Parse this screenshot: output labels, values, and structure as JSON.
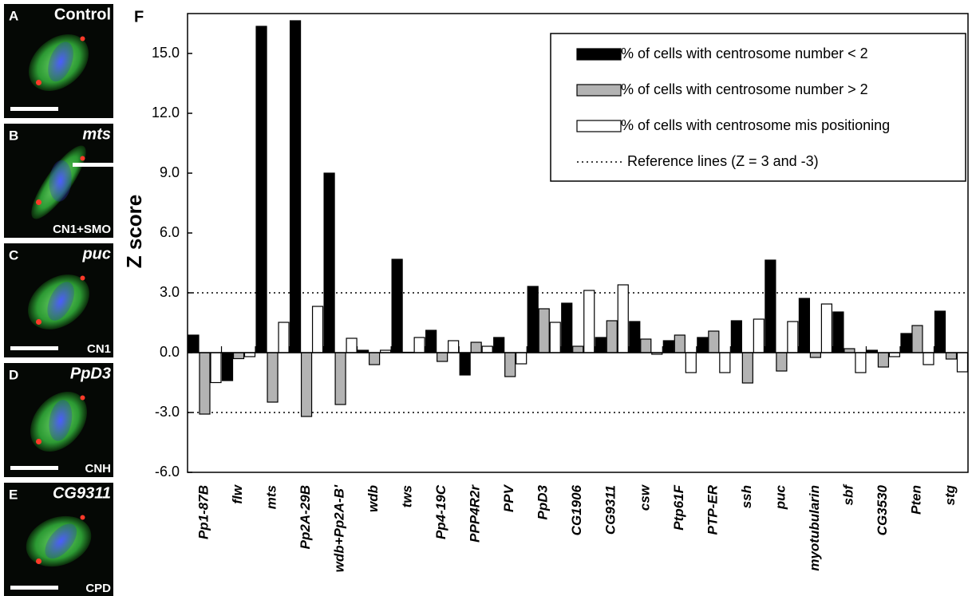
{
  "panels": [
    {
      "letter": "A",
      "gene": "Control",
      "note": null
    },
    {
      "letter": "B",
      "gene": "mts",
      "note": "CN1+SMO"
    },
    {
      "letter": "C",
      "gene": "puc",
      "note": "CN1"
    },
    {
      "letter": "D",
      "gene": "PpD3",
      "note": "CNH"
    },
    {
      "letter": "E",
      "gene": "CG9311",
      "note": "CPD"
    }
  ],
  "chart_data": {
    "type": "bar",
    "panel_label": "F",
    "y_label": "Z score",
    "categories": [
      "Pp1-87B",
      "flw",
      "mts",
      "Pp2A-29B",
      "wdb+Pp2A-B'",
      "wdb",
      "tws",
      "Pp4-19C",
      "PPP4R2r",
      "PPV",
      "PpD3",
      "CG1906",
      "CG9311",
      "csw",
      "Ptp61F",
      "PTP-ER",
      "ssh",
      "puc",
      "myotubularin",
      "sbf",
      "CG3530",
      "Pten",
      "stg"
    ],
    "series": [
      {
        "name": "% of cells with centrosome number < 2",
        "color": "#000000",
        "values": [
          0.88,
          -1.4,
          16.36,
          16.64,
          9.0,
          0.12,
          4.68,
          1.12,
          -1.12,
          0.76,
          3.32,
          2.48,
          0.76,
          1.56,
          0.6,
          0.76,
          1.6,
          4.64,
          2.72,
          2.04,
          0.12,
          0.96,
          2.08
        ]
      },
      {
        "name": "% of cells with centrosome number > 2",
        "color": "#b3b3b3",
        "values": [
          -3.08,
          -0.3,
          -2.48,
          -3.2,
          -2.6,
          -0.6,
          0.02,
          -0.44,
          0.52,
          -1.2,
          2.2,
          0.32,
          1.6,
          0.68,
          0.88,
          1.08,
          -1.52,
          -0.92,
          -0.24,
          0.2,
          -0.72,
          1.36,
          -0.32
        ]
      },
      {
        "name": "% of cells with centrosome mis positioning",
        "color": "#ffffff",
        "values": [
          -1.5,
          -0.2,
          1.52,
          2.32,
          0.72,
          0.12,
          0.76,
          0.6,
          0.32,
          -0.56,
          1.52,
          3.12,
          3.4,
          -0.08,
          -1.0,
          -1.0,
          1.68,
          1.56,
          2.44,
          -1.0,
          -0.2,
          -0.6,
          -0.96
        ]
      }
    ],
    "reference_lines": {
      "label": "Reference lines (Z = 3 and -3)",
      "values": [
        3,
        -3
      ]
    },
    "ylim": [
      -6,
      17
    ],
    "yticks": [
      {
        "value": -6,
        "label": "-6.0"
      },
      {
        "value": -3,
        "label": "-3.0"
      },
      {
        "value": 0,
        "label": "0.0"
      },
      {
        "value": 3,
        "label": "3.0"
      },
      {
        "value": 6,
        "label": "6.0"
      },
      {
        "value": 9,
        "label": "9.0"
      },
      {
        "value": 12,
        "label": "12.0"
      },
      {
        "value": 15,
        "label": "15.0"
      }
    ],
    "legend": "upper right"
  }
}
